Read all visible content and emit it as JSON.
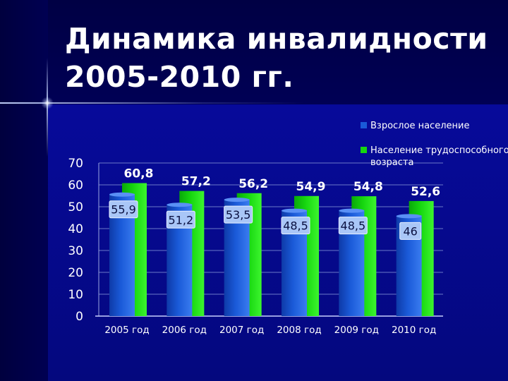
{
  "slide": {
    "title_line1": "Динамика инвалидности",
    "title_line2": "2005-2010 гг."
  },
  "colors": {
    "background": "#00005e",
    "adult_bar": "#1a5ad8",
    "working_age_bar": "#16d60f",
    "text": "#ffffff"
  },
  "chart_data": {
    "type": "bar",
    "categories": [
      "2005 год",
      "2006 год",
      "2007 год",
      "2008 год",
      "2009 год",
      "2010 год"
    ],
    "series": [
      {
        "name": "Взрослое население",
        "values": [
          55.9,
          51.2,
          53.5,
          48.5,
          48.5,
          46
        ],
        "labels": [
          "55,9",
          "51,2",
          "53,5",
          "48,5",
          "48,5",
          "46"
        ]
      },
      {
        "name": "Население трудоспособного возраста",
        "values": [
          60.8,
          57.2,
          56.2,
          54.9,
          54.8,
          52.6
        ],
        "labels": [
          "60,8",
          "57,2",
          "56,2",
          "54,9",
          "54,8",
          "52,6"
        ]
      }
    ],
    "y_ticks": [
      "0",
      "10",
      "20",
      "30",
      "40",
      "50",
      "60",
      "70"
    ],
    "ylim": [
      0,
      70
    ],
    "grid": true,
    "legend": "top-right",
    "title": "",
    "xlabel": "",
    "ylabel": ""
  }
}
